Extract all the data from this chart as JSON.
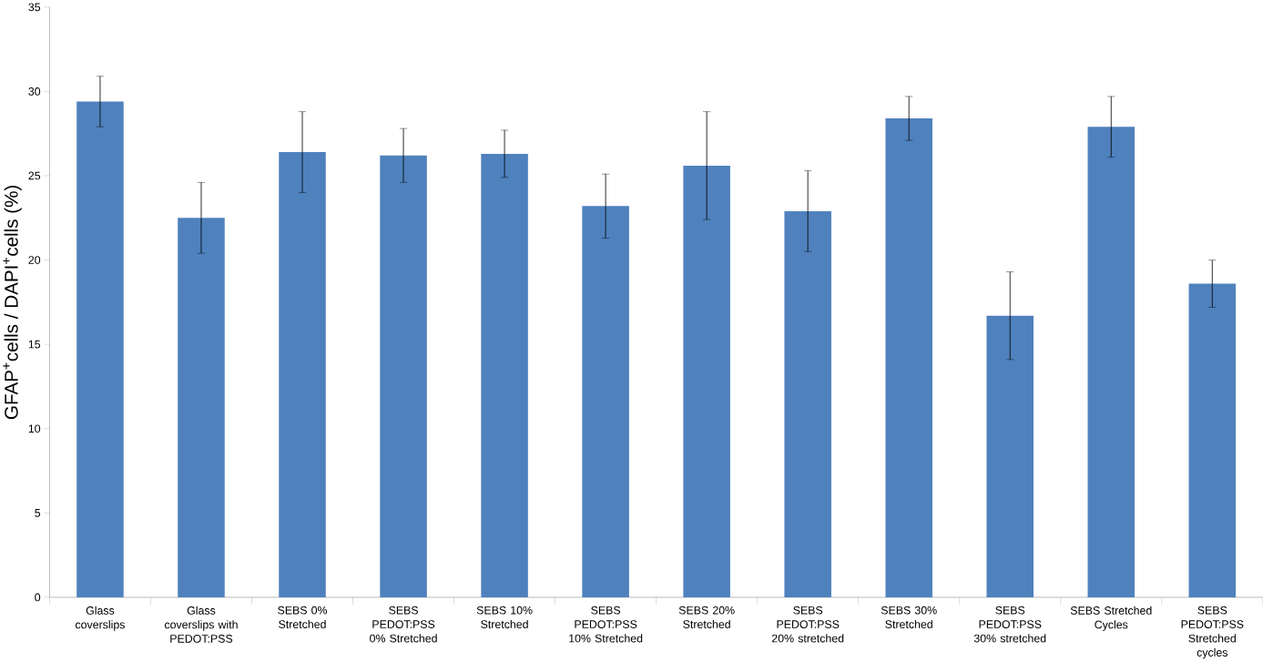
{
  "chart_data": {
    "type": "bar",
    "ylabel": "GFAP$^{+}$cells / DAPI$^{+}$cells (%)",
    "categories": [
      "Glass coverslips",
      "Glass coverslips with PEDOT:PSS",
      "SEBS 0% Stretched",
      "SEBS PEDOT:PSS 0% Stretched",
      "SEBS 10% Stretched",
      "SEBS PEDOT:PSS 10% Stretched",
      "SEBS 20% Stretched",
      "SEBS PEDOT:PSS 20% stretched",
      "SEBS 30% Stretched",
      "SEBS PEDOT:PSS 30% stretched",
      "SEBS Stretched Cycles",
      "SEBS PEDOT:PSS Stretched cycles"
    ],
    "values": [
      29.4,
      22.5,
      26.4,
      26.2,
      26.3,
      23.2,
      25.6,
      22.9,
      28.4,
      16.7,
      27.9,
      18.6
    ],
    "errors": [
      1.5,
      2.1,
      2.4,
      1.6,
      1.4,
      1.9,
      3.2,
      2.4,
      1.3,
      2.6,
      1.8,
      1.4
    ],
    "color": "#4f81bd",
    "ylim": [
      0,
      35
    ],
    "yticks": [
      0,
      5,
      10,
      15,
      20,
      25,
      30,
      35
    ]
  }
}
